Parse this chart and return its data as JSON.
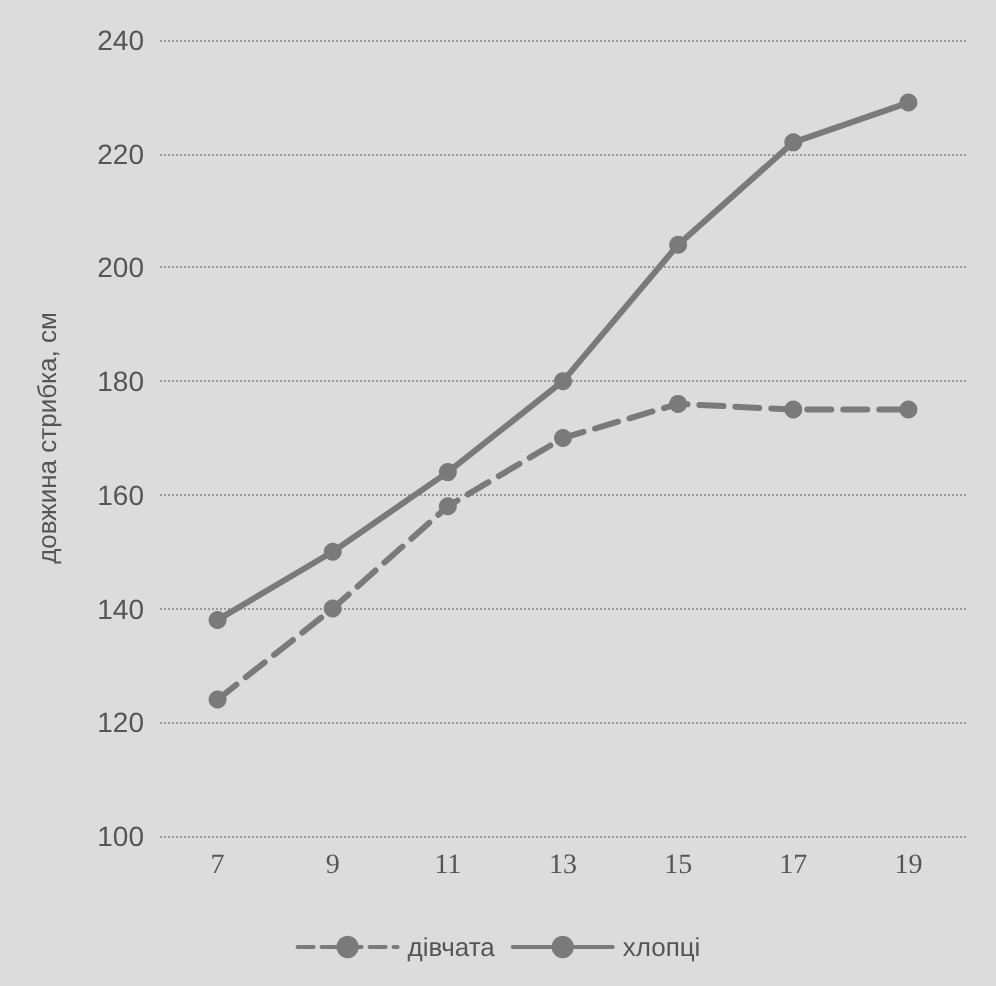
{
  "chart_data": {
    "type": "line",
    "ylabel": "довжина стрибка, см",
    "categories": [
      "7",
      "9",
      "11",
      "13",
      "15",
      "17",
      "19"
    ],
    "series": [
      {
        "name": "дівчата",
        "color": "#7a7a7a",
        "line_style": "dashed",
        "values": [
          124,
          140,
          158,
          170,
          176,
          175,
          175
        ]
      },
      {
        "name": "хлопці",
        "color": "#7a7a7a",
        "line_style": "solid",
        "values": [
          138,
          150,
          164,
          180,
          204,
          222,
          229
        ]
      }
    ],
    "ylim": [
      100,
      240
    ],
    "yticks": [
      100,
      120,
      140,
      160,
      180,
      200,
      220,
      240
    ],
    "grid": "y",
    "legend": "bottom",
    "marker": "circle"
  }
}
